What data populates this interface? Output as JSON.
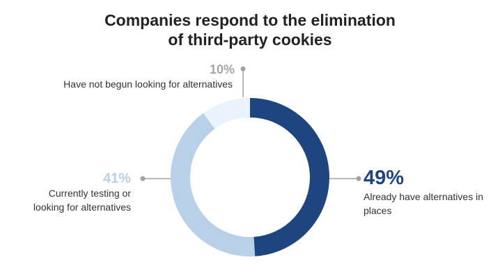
{
  "chart_data": {
    "type": "donut",
    "title": [
      "Companies respond to the elimination",
      "of third-party cookies"
    ],
    "categories": [
      "Already have alternatives in places",
      "Currently testing or looking for alternatives",
      "Have not begun looking for alternatives"
    ],
    "values": [
      49,
      41,
      10
    ],
    "value_labels": [
      "49%",
      "41%",
      "10%"
    ],
    "colors": [
      "#1f4580",
      "#b8d0e8",
      "#eaf3fb"
    ],
    "label_colors": [
      "#1f4580",
      "#b8d0e8",
      "#a6a6a6"
    ]
  }
}
